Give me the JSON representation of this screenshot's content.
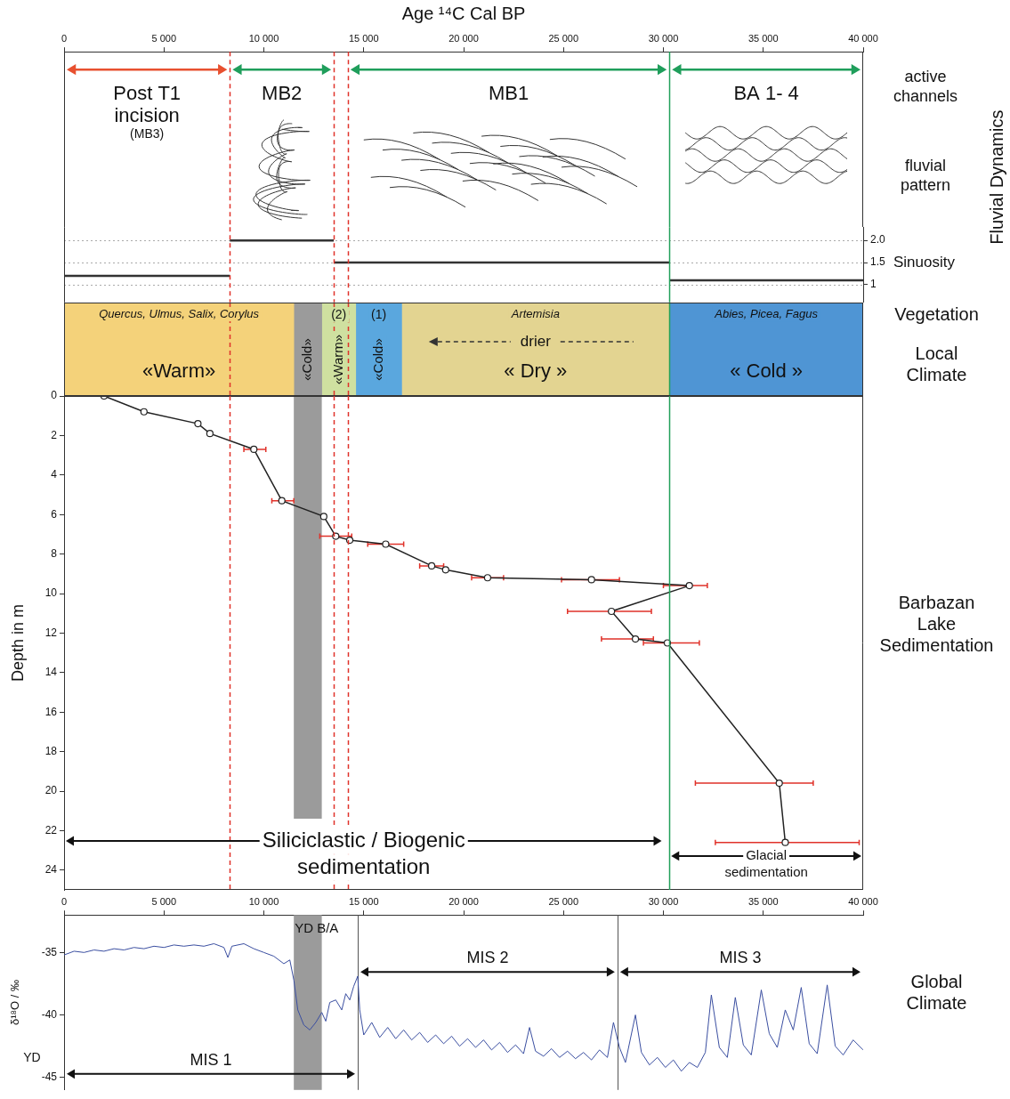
{
  "boundaries": {
    "dashed": [
      8300,
      13500,
      14200
    ],
    "dashed_color": "#e0322a",
    "solid": [
      30300
    ],
    "solid_color": "#22a05a"
  },
  "chart_data": [
    {
      "type": "timeline",
      "xlabel": "Age ¹⁴C Cal BP",
      "xlim": [
        0,
        40000
      ],
      "xticks": [
        0,
        {
          "value": 5000,
          "label": "5 000"
        },
        {
          "value": 10000,
          "label": "10 000"
        },
        {
          "value": 15000,
          "label": "15 000"
        },
        {
          "value": 20000,
          "label": "20 000"
        },
        {
          "value": 25000,
          "label": "25 000"
        },
        {
          "value": 30000,
          "label": "30 000"
        },
        {
          "value": 35000,
          "label": "35 000"
        },
        {
          "value": 40000,
          "label": "40 000"
        }
      ],
      "tick_labels": "x",
      "grid": false,
      "phases": [
        {
          "label": "Post T1 incision",
          "sublabel": "(MB3)",
          "start": 0,
          "end": 8300,
          "color": "#e8502f"
        },
        {
          "label": "MB2",
          "start": 8300,
          "end": 13500,
          "color": "#1f9e5b"
        },
        {
          "label": "MB1",
          "start": 14200,
          "end": 30300,
          "color": "#1f9e5b"
        },
        {
          "label": "BA 1- 4",
          "start": 30300,
          "end": 40000,
          "color": "#1f9e5b"
        }
      ],
      "side_labels": [
        "active channels",
        "fluvial pattern"
      ],
      "side_title": "Fluvial Dynamics"
    },
    {
      "type": "line",
      "xlim": [
        0,
        40000
      ],
      "ylim": [
        0.6,
        2.3
      ],
      "yticks": [
        1,
        1.5,
        {
          "value": 2,
          "label": "2.0"
        }
      ],
      "ylabel": "Sinuosity",
      "tick_labels": "y",
      "grid": true,
      "line_style": "solid",
      "series": [
        {
          "x": [
            0,
            8300
          ],
          "values": [
            1.2,
            1.2
          ],
          "color": "#333333"
        },
        {
          "x": [
            8300,
            13500
          ],
          "values": [
            2,
            2
          ],
          "color": "#333333"
        },
        {
          "x": [
            13500,
            30300
          ],
          "values": [
            1.5,
            1.5
          ],
          "color": "#333333"
        },
        {
          "x": [
            30300,
            40000
          ],
          "values": [
            1.1,
            1.1
          ],
          "color": "#333333"
        }
      ]
    },
    {
      "type": "bar",
      "orientation": "horizontal",
      "xlim": [
        0,
        40000
      ],
      "tick_labels": false,
      "grid": false,
      "values": [
        [
          0,
          11500
        ],
        [
          11500,
          12900
        ],
        [
          12900,
          14600
        ],
        [
          14600,
          16900
        ],
        [
          16900,
          30300
        ],
        [
          30300,
          40000
        ]
      ],
      "colors": [
        "#f4d27a",
        "#9b9b9b",
        "#cfe0a0",
        "#5aa7de",
        "#e3d491",
        "#4f95d4"
      ],
      "vegetation": [
        "Quercus, Ulmus, Salix, Corylus",
        null,
        null,
        null,
        "Artemisia",
        "Abies, Picea, Fagus"
      ],
      "notes": [
        null,
        null,
        "(2)",
        "(1)",
        null,
        null
      ],
      "trend": [
        null,
        null,
        null,
        null,
        "drier",
        null
      ],
      "climate": [
        "«Warm»",
        "«Cold»",
        "«Warm»",
        "«Cold»",
        "« Dry »",
        "« Cold »"
      ],
      "side_labels": [
        "Vegetation",
        "Local Climate"
      ]
    },
    {
      "type": "scatter",
      "xlim": [
        0,
        40000
      ],
      "ylim": [
        25,
        0
      ],
      "yticks": [
        0,
        2,
        4,
        6,
        8,
        10,
        12,
        14,
        16,
        18,
        20,
        22,
        24
      ],
      "ylabel": "Depth in m",
      "tick_labels": "y",
      "grid": false,
      "marker": "circle",
      "line_style": "solid",
      "color": "#222222",
      "x": [
        2000,
        4000,
        6700,
        7300,
        9500,
        10900,
        13000,
        13600,
        14300,
        16100,
        18400,
        19100,
        21200,
        26400,
        31300,
        27400,
        28600,
        30200,
        35800,
        36100
      ],
      "values": [
        0,
        0.8,
        1.4,
        1.9,
        2.7,
        5.3,
        6.1,
        7.1,
        7.3,
        7.5,
        8.6,
        8.8,
        9.2,
        9.3,
        9.6,
        10.9,
        12.3,
        12.5,
        19.6,
        22.6
      ],
      "age_low": [
        null,
        null,
        null,
        null,
        9000,
        10400,
        null,
        12800,
        null,
        15200,
        17800,
        null,
        20400,
        24900,
        30000,
        25200,
        26900,
        29000,
        31600,
        32600
      ],
      "age_high": [
        null,
        null,
        null,
        null,
        10100,
        11500,
        null,
        14400,
        null,
        17000,
        19000,
        null,
        22000,
        27800,
        32200,
        29400,
        29500,
        31800,
        37500,
        39800
      ],
      "error_color": "#e0322a",
      "band": [
        11500,
        12900
      ],
      "band_color": "#9b9b9b",
      "periods": [
        {
          "label": "Siliciclastic / Biogenic sedimentation",
          "start": 0,
          "end": 30000
        },
        {
          "label": "Glacial sedimentation",
          "start": 30300,
          "end": 40000
        }
      ],
      "side_labels": [
        "Barbazan Lake Sedimentation"
      ]
    },
    {
      "type": "line",
      "xlim": [
        0,
        40000
      ],
      "xticks": [
        0,
        {
          "value": 5000,
          "label": "5 000"
        },
        {
          "value": 10000,
          "label": "10 000"
        },
        {
          "value": 15000,
          "label": "15 000"
        },
        {
          "value": 20000,
          "label": "20 000"
        },
        {
          "value": 25000,
          "label": "25 000"
        },
        {
          "value": 30000,
          "label": "30 000"
        },
        {
          "value": 35000,
          "label": "35 000"
        },
        {
          "value": 40000,
          "label": "40 000"
        }
      ],
      "ylim": [
        -46,
        -32
      ],
      "yticks": [
        -45,
        -40,
        -35
      ],
      "ylabel": "δ¹⁸O / ‰",
      "tick_labels": true,
      "grid": false,
      "color": "#3a4ea0",
      "line_style": "solid",
      "x": [
        0,
        500,
        1000,
        1500,
        2000,
        2500,
        3000,
        3500,
        4000,
        4500,
        5000,
        5500,
        6000,
        6500,
        7000,
        7500,
        8000,
        8200,
        8400,
        9000,
        9500,
        10000,
        10500,
        11000,
        11300,
        11500,
        11700,
        12000,
        12300,
        12600,
        12900,
        13100,
        13300,
        13600,
        13900,
        14100,
        14300,
        14500,
        14700,
        14800,
        15000,
        15400,
        15800,
        16200,
        16600,
        17000,
        17400,
        17800,
        18200,
        18600,
        19000,
        19400,
        19800,
        20200,
        20600,
        21000,
        21400,
        21800,
        22200,
        22600,
        23000,
        23300,
        23600,
        24000,
        24400,
        24800,
        25200,
        25600,
        26000,
        26400,
        26800,
        27200,
        27500,
        27800,
        28100,
        28600,
        28900,
        29300,
        29700,
        30100,
        30500,
        30900,
        31300,
        31700,
        32100,
        32400,
        32800,
        33200,
        33600,
        34000,
        34400,
        34900,
        35300,
        35700,
        36100,
        36500,
        36900,
        37300,
        37700,
        38200,
        38600,
        39000,
        39500,
        40000
      ],
      "values": [
        -35.2,
        -34.9,
        -35.0,
        -34.8,
        -34.9,
        -34.7,
        -34.8,
        -34.6,
        -34.7,
        -34.5,
        -34.6,
        -34.4,
        -34.5,
        -34.4,
        -34.5,
        -34.3,
        -34.6,
        -35.4,
        -34.5,
        -34.3,
        -34.7,
        -35.0,
        -35.3,
        -35.9,
        -35.6,
        -37.2,
        -39.6,
        -40.8,
        -41.2,
        -40.6,
        -39.8,
        -40.5,
        -39.0,
        -38.8,
        -39.6,
        -38.3,
        -38.8,
        -37.7,
        -36.9,
        -39.6,
        -41.6,
        -40.6,
        -41.8,
        -41.0,
        -41.9,
        -41.2,
        -42.0,
        -41.4,
        -42.2,
        -41.6,
        -42.3,
        -41.7,
        -42.5,
        -41.9,
        -42.6,
        -42.0,
        -42.8,
        -42.2,
        -43.0,
        -42.4,
        -43.1,
        -41.0,
        -42.9,
        -43.3,
        -42.7,
        -43.4,
        -42.9,
        -43.5,
        -43.0,
        -43.6,
        -42.8,
        -43.4,
        -40.6,
        -42.6,
        -43.8,
        -40.0,
        -43.0,
        -44.0,
        -43.4,
        -44.2,
        -43.6,
        -44.5,
        -43.8,
        -44.2,
        -43.0,
        -38.4,
        -42.6,
        -43.4,
        -38.6,
        -42.4,
        -43.2,
        -38.0,
        -41.5,
        -42.6,
        -39.6,
        -41.2,
        -37.8,
        -42.3,
        -43.1,
        -37.6,
        -42.5,
        -43.2,
        -42.0,
        -42.8
      ],
      "band": [
        11500,
        12900
      ],
      "band_color": "#9b9b9b",
      "band_label": "YD B/A",
      "y_note": "YD",
      "periods": [
        {
          "label": "MIS 1",
          "start": 0,
          "end": 14700
        },
        {
          "label": "MIS 2",
          "start": 14700,
          "end": 27700
        },
        {
          "label": "MIS 3",
          "start": 27700,
          "end": 40000
        }
      ],
      "side_labels": [
        "Global Climate"
      ]
    }
  ]
}
